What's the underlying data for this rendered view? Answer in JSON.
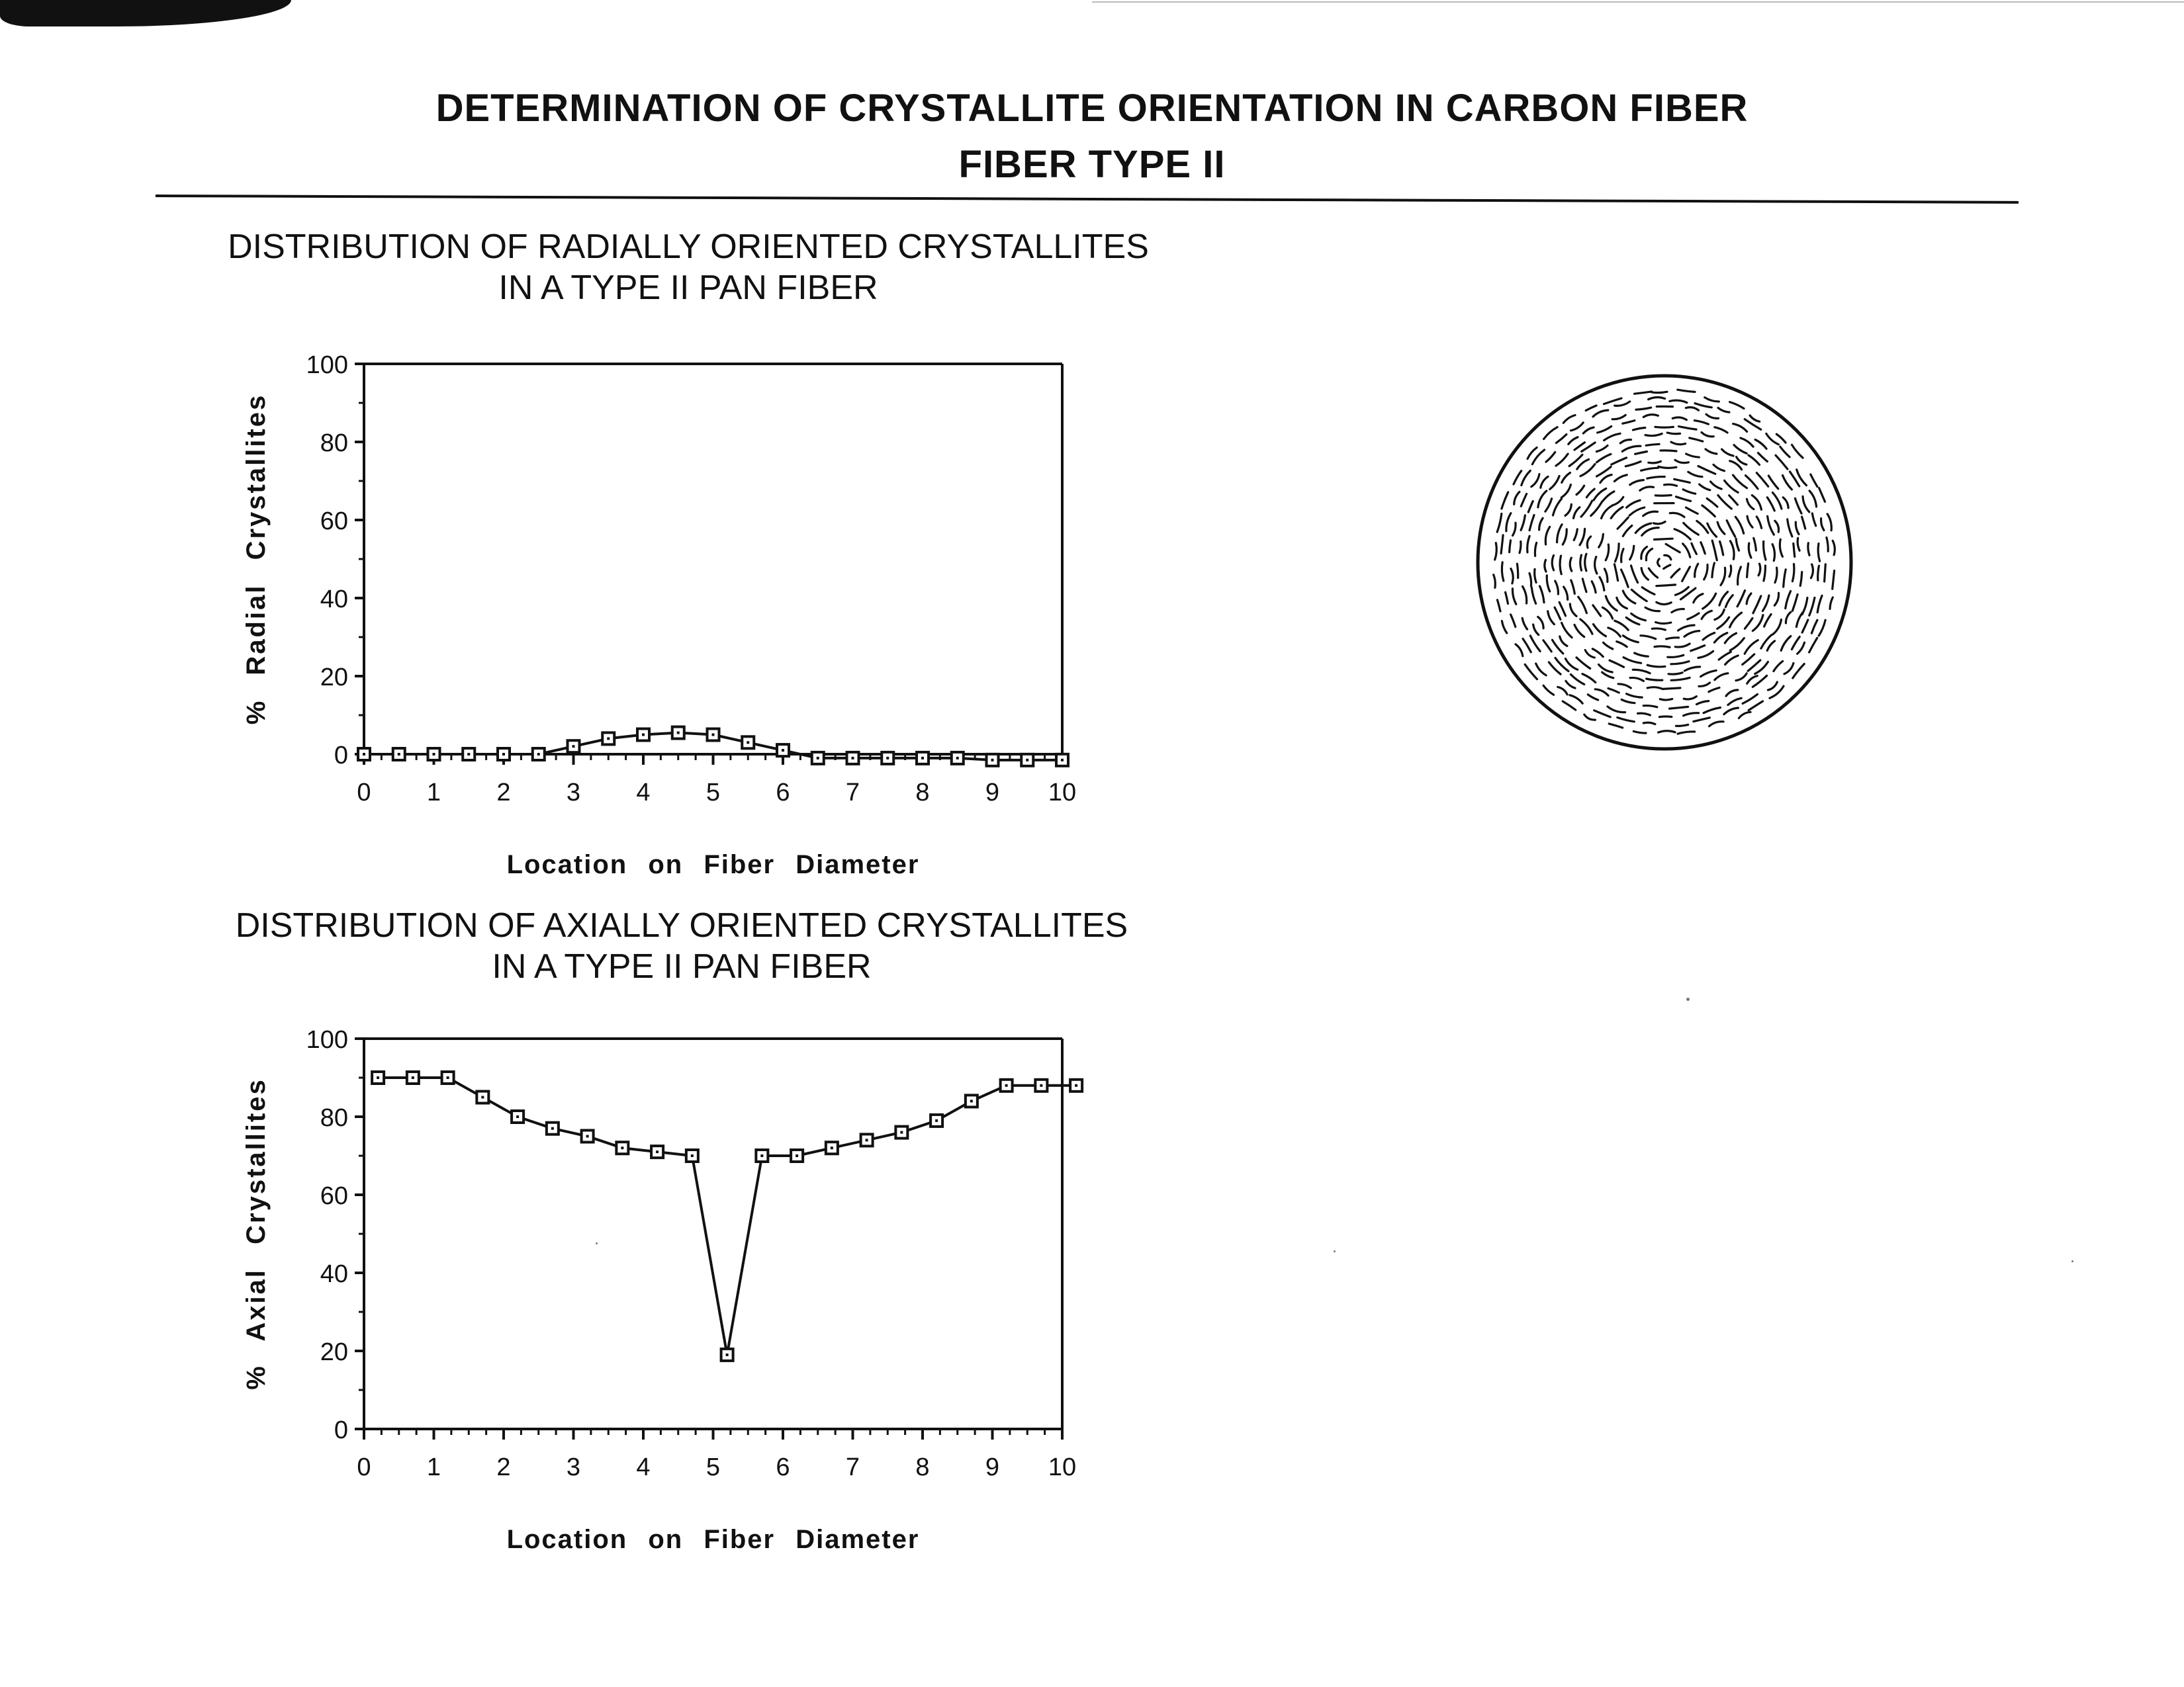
{
  "document": {
    "title_line1": "DETERMINATION OF CRYSTALLITE ORIENTATION IN CARBON FIBER",
    "title_line2": "FIBER TYPE II"
  },
  "chart_data": [
    {
      "type": "line",
      "title_line1": "DISTRIBUTION OF RADIALLY ORIENTED CRYSTALLITES",
      "title_line2": "IN A TYPE II PAN FIBER",
      "xlabel": "Location on Fiber Diameter",
      "ylabel": "% Radial Crystallites",
      "xlim": [
        0,
        10
      ],
      "ylim": [
        0,
        100
      ],
      "x_ticks": [
        "0",
        "1",
        "2",
        "3",
        "4",
        "5",
        "6",
        "7",
        "8",
        "9",
        "10"
      ],
      "y_ticks": [
        "0",
        "20",
        "40",
        "60",
        "80",
        "100"
      ],
      "marker": "open-square",
      "color": "#111111",
      "x": [
        0,
        0.5,
        1,
        1.5,
        2,
        2.5,
        3,
        3.5,
        4,
        4.5,
        5,
        5.5,
        6,
        6.5,
        7,
        7.5,
        8,
        8.5,
        9,
        9.5,
        10
      ],
      "y": [
        0,
        0,
        0,
        0,
        0,
        0,
        2,
        4,
        5,
        5.5,
        5,
        3,
        1,
        -1,
        -1,
        -1,
        -1,
        -1,
        -1.5,
        -1.5,
        -1.5
      ]
    },
    {
      "type": "line",
      "title_line1": "DISTRIBUTION OF AXIALLY ORIENTED CRYSTALLITES",
      "title_line2": "IN A TYPE II PAN FIBER",
      "xlabel": "Location on Fiber Diameter",
      "ylabel": "% Axial Crystallites",
      "xlim": [
        0,
        10
      ],
      "ylim": [
        0,
        100
      ],
      "x_ticks": [
        "0",
        "1",
        "2",
        "3",
        "4",
        "5",
        "6",
        "7",
        "8",
        "9",
        "10"
      ],
      "y_ticks": [
        "0",
        "20",
        "40",
        "60",
        "80",
        "100"
      ],
      "marker": "open-square",
      "color": "#111111",
      "x": [
        0.2,
        0.7,
        1.2,
        1.7,
        2.2,
        2.7,
        3.2,
        3.7,
        4.2,
        4.7,
        5.2,
        5.7,
        6.2,
        6.7,
        7.2,
        7.7,
        8.2,
        8.7,
        9.2,
        9.7,
        10.2
      ],
      "y": [
        90,
        90,
        90,
        85,
        80,
        77,
        75,
        72,
        71,
        70,
        19,
        70,
        70,
        72,
        74,
        76,
        79,
        84,
        88,
        88,
        88
      ]
    }
  ]
}
